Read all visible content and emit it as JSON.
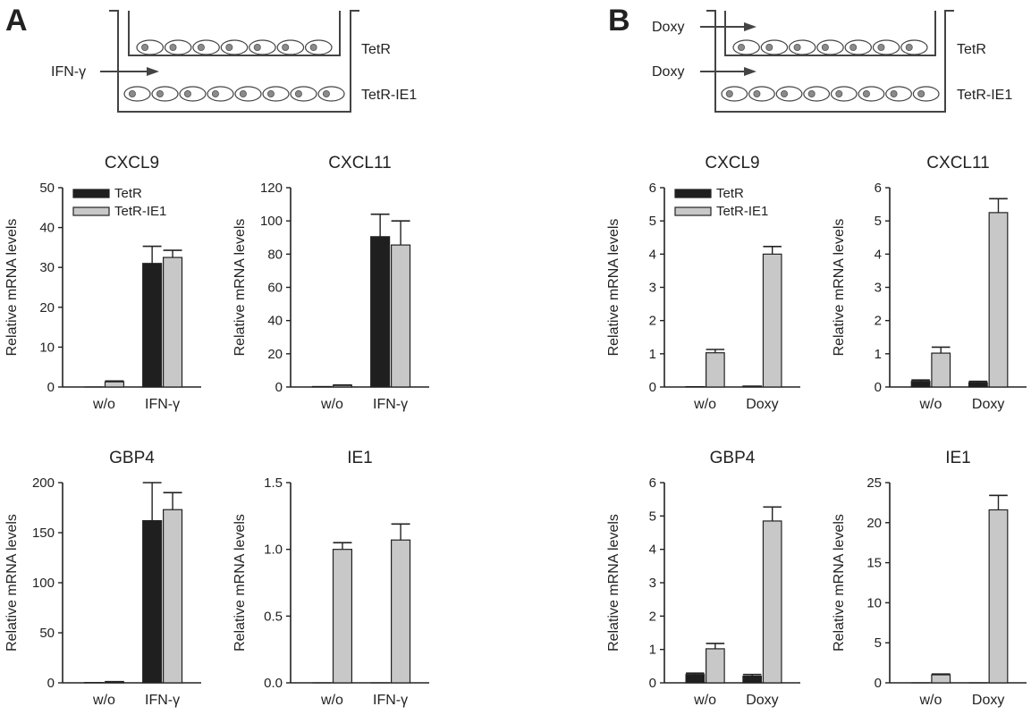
{
  "panels": [
    {
      "letter": "A",
      "diagram": {
        "top_label": "TetR",
        "bottom_label": "TetR-IE1",
        "arrows": [
          "IFN-γ"
        ]
      }
    },
    {
      "letter": "B",
      "diagram": {
        "top_label": "TetR",
        "bottom_label": "TetR-IE1",
        "arrows": [
          "Doxy",
          "Doxy"
        ]
      }
    }
  ],
  "colors": {
    "tetr": "#1f1f1f",
    "tetr_ie1": "#c8c8c8",
    "axis": "#222222"
  },
  "chart_data": [
    {
      "type": "bar",
      "panel": "A",
      "title": "CXCL9",
      "ylabel": "Relative mRNA levels",
      "categories": [
        "w/o",
        "IFN-γ"
      ],
      "ylim": [
        0,
        50
      ],
      "yticks": [
        0,
        10,
        20,
        30,
        40,
        50
      ],
      "ytick_labels": [
        "0",
        "10",
        "20",
        "30",
        "40",
        "50"
      ],
      "legend": true,
      "series": [
        {
          "name": "TetR",
          "values": [
            0,
            31
          ],
          "errors": [
            0,
            4.3
          ]
        },
        {
          "name": "TetR-IE1",
          "values": [
            1.3,
            32.5
          ],
          "errors": [
            0.2,
            1.8
          ]
        }
      ]
    },
    {
      "type": "bar",
      "panel": "A",
      "title": "CXCL11",
      "ylabel": "Relative mRNA levels",
      "categories": [
        "w/o",
        "IFN-γ"
      ],
      "ylim": [
        0,
        120
      ],
      "yticks": [
        0,
        20,
        40,
        60,
        80,
        100,
        120
      ],
      "ytick_labels": [
        "0",
        "20",
        "40",
        "60",
        "80",
        "100",
        "120"
      ],
      "legend": false,
      "series": [
        {
          "name": "TetR",
          "values": [
            0.3,
            90.5
          ],
          "errors": [
            0,
            13.5
          ]
        },
        {
          "name": "TetR-IE1",
          "values": [
            1,
            85.5
          ],
          "errors": [
            0.2,
            14.5
          ]
        }
      ]
    },
    {
      "type": "bar",
      "panel": "B",
      "title": "CXCL9",
      "ylabel": "Relative mRNA levels",
      "categories": [
        "w/o",
        "Doxy"
      ],
      "ylim": [
        0,
        6
      ],
      "yticks": [
        0,
        1,
        2,
        3,
        4,
        5,
        6
      ],
      "ytick_labels": [
        "0",
        "1",
        "2",
        "3",
        "4",
        "5",
        "6"
      ],
      "legend": true,
      "series": [
        {
          "name": "TetR",
          "values": [
            0.01,
            0.03
          ],
          "errors": [
            0,
            0
          ]
        },
        {
          "name": "TetR-IE1",
          "values": [
            1.03,
            4
          ],
          "errors": [
            0.1,
            0.23
          ]
        }
      ]
    },
    {
      "type": "bar",
      "panel": "B",
      "title": "CXCL11",
      "ylabel": "Relative mRNA levels",
      "categories": [
        "w/o",
        "Doxy"
      ],
      "ylim": [
        0,
        6
      ],
      "yticks": [
        0,
        1,
        2,
        3,
        4,
        5,
        6
      ],
      "ytick_labels": [
        "0",
        "1",
        "2",
        "3",
        "4",
        "5",
        "6"
      ],
      "legend": false,
      "series": [
        {
          "name": "TetR",
          "values": [
            0.17,
            0.13
          ],
          "errors": [
            0.04,
            0.04
          ]
        },
        {
          "name": "TetR-IE1",
          "values": [
            1.02,
            5.25
          ],
          "errors": [
            0.18,
            0.42
          ]
        }
      ]
    },
    {
      "type": "bar",
      "panel": "A",
      "title": "GBP4",
      "ylabel": "Relative mRNA levels",
      "categories": [
        "w/o",
        "IFN-γ"
      ],
      "ylim": [
        0,
        200
      ],
      "yticks": [
        0,
        50,
        100,
        150,
        200
      ],
      "ytick_labels": [
        "0",
        "50",
        "100",
        "150",
        "200"
      ],
      "legend": false,
      "series": [
        {
          "name": "TetR",
          "values": [
            0.3,
            162
          ],
          "errors": [
            0,
            38
          ]
        },
        {
          "name": "TetR-IE1",
          "values": [
            1,
            173
          ],
          "errors": [
            0.2,
            17
          ]
        }
      ]
    },
    {
      "type": "bar",
      "panel": "A",
      "title": "IE1",
      "ylabel": "Relative mRNA levels",
      "categories": [
        "w/o",
        "IFN-γ"
      ],
      "ylim": [
        0,
        1.5
      ],
      "yticks": [
        0,
        0.5,
        1,
        1.5
      ],
      "ytick_labels": [
        "0.0",
        "0.5",
        "1.0",
        "1.5"
      ],
      "legend": false,
      "series": [
        {
          "name": "TetR",
          "values": [
            0,
            0
          ],
          "errors": [
            0,
            0
          ]
        },
        {
          "name": "TetR-IE1",
          "values": [
            1,
            1.07
          ],
          "errors": [
            0.05,
            0.12
          ]
        }
      ]
    },
    {
      "type": "bar",
      "panel": "B",
      "title": "GBP4",
      "ylabel": "Relative mRNA levels",
      "categories": [
        "w/o",
        "Doxy"
      ],
      "ylim": [
        0,
        6
      ],
      "yticks": [
        0,
        1,
        2,
        3,
        4,
        5,
        6
      ],
      "ytick_labels": [
        "0",
        "1",
        "2",
        "3",
        "4",
        "5",
        "6"
      ],
      "legend": false,
      "series": [
        {
          "name": "TetR",
          "values": [
            0.25,
            0.2
          ],
          "errors": [
            0.04,
            0.05
          ]
        },
        {
          "name": "TetR-IE1",
          "values": [
            1.02,
            4.85
          ],
          "errors": [
            0.16,
            0.42
          ]
        }
      ]
    },
    {
      "type": "bar",
      "panel": "B",
      "title": "IE1",
      "ylabel": "Relative mRNA levels",
      "categories": [
        "w/o",
        "Doxy"
      ],
      "ylim": [
        0,
        25
      ],
      "yticks": [
        0,
        5,
        10,
        15,
        20,
        25
      ],
      "ytick_labels": [
        "0",
        "5",
        "10",
        "15",
        "20",
        "25"
      ],
      "legend": false,
      "series": [
        {
          "name": "TetR",
          "values": [
            0,
            0
          ],
          "errors": [
            0,
            0
          ]
        },
        {
          "name": "TetR-IE1",
          "values": [
            1,
            21.6
          ],
          "errors": [
            0.1,
            1.8
          ]
        }
      ]
    }
  ]
}
